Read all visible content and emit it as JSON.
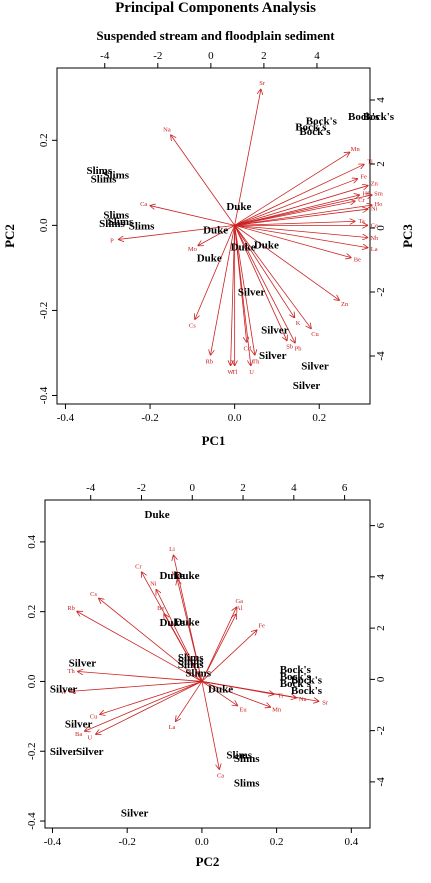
{
  "title": "Principal Components Analysis",
  "subtitle": "Suspended stream and floodplain sediment",
  "colors": {
    "variables": "#cc2222",
    "observations": "#000000"
  },
  "chart_data": [
    {
      "type": "scatter",
      "xlabel": "PC1",
      "ylabel": "PC2",
      "y2label": "PC3",
      "xlim": [
        -0.42,
        0.32
      ],
      "ylim": [
        -0.42,
        0.37
      ],
      "x_ticks": [
        -0.4,
        -0.2,
        0.0,
        0.2
      ],
      "y_ticks": [
        -0.4,
        -0.2,
        0.0,
        0.2
      ],
      "x2lim": [
        -5.8,
        6.0
      ],
      "y2lim": [
        -5.5,
        5.0
      ],
      "x2_ticks": [
        -4,
        -2,
        0,
        2,
        4
      ],
      "y2_ticks": [
        -4,
        -2,
        0,
        2,
        4
      ],
      "observations": [
        {
          "label": "Slims",
          "x": -0.32,
          "y": 0.13
        },
        {
          "label": "Slims",
          "x": -0.28,
          "y": 0.12
        },
        {
          "label": "Slims",
          "x": -0.31,
          "y": 0.11
        },
        {
          "label": "Slims",
          "x": -0.28,
          "y": 0.025
        },
        {
          "label": "Slims",
          "x": -0.27,
          "y": 0.01
        },
        {
          "label": "Slims",
          "x": -0.29,
          "y": 0.005
        },
        {
          "label": "Slims",
          "x": -0.22,
          "y": 0.0
        },
        {
          "label": "Duke",
          "x": 0.01,
          "y": 0.045
        },
        {
          "label": "Duke",
          "x": -0.045,
          "y": -0.01
        },
        {
          "label": "Duke",
          "x": -0.06,
          "y": -0.075
        },
        {
          "label": "Duke",
          "x": 0.02,
          "y": -0.05
        },
        {
          "label": "Duke",
          "x": 0.075,
          "y": -0.045
        },
        {
          "label": "Silver",
          "x": 0.04,
          "y": -0.155
        },
        {
          "label": "Silver",
          "x": 0.095,
          "y": -0.245
        },
        {
          "label": "Silver",
          "x": 0.09,
          "y": -0.305
        },
        {
          "label": "Silver",
          "x": 0.19,
          "y": -0.33
        },
        {
          "label": "Silver",
          "x": 0.17,
          "y": -0.375
        },
        {
          "label": "Bock's",
          "x": 0.205,
          "y": 0.247
        },
        {
          "label": "Bock's",
          "x": 0.18,
          "y": 0.232
        },
        {
          "label": "Bock's",
          "x": 0.19,
          "y": 0.222
        },
        {
          "label": "Bock's",
          "x": 0.305,
          "y": 0.257
        },
        {
          "label": "Bock's",
          "x": 0.34,
          "y": 0.257
        }
      ],
      "variables": [
        {
          "label": "Sr",
          "x": 0.065,
          "y": 0.335
        },
        {
          "label": "Na",
          "x": -0.16,
          "y": 0.225
        },
        {
          "label": "Ti",
          "x": 0.32,
          "y": 0.15
        },
        {
          "label": "Mn",
          "x": 0.285,
          "y": 0.18
        },
        {
          "label": "Fe",
          "x": 0.305,
          "y": 0.115
        },
        {
          "label": "Zn",
          "x": 0.33,
          "y": 0.098
        },
        {
          "label": "Hf",
          "x": 0.31,
          "y": 0.075
        },
        {
          "label": "Cr",
          "x": 0.3,
          "y": 0.06
        },
        {
          "label": "Sm",
          "x": 0.34,
          "y": 0.075
        },
        {
          "label": "Ho",
          "x": 0.34,
          "y": 0.05
        },
        {
          "label": "Ni",
          "x": 0.33,
          "y": 0.04
        },
        {
          "label": "Ta",
          "x": 0.3,
          "y": 0.01
        },
        {
          "label": "Ce",
          "x": 0.33,
          "y": 0.0
        },
        {
          "label": "Nb",
          "x": 0.33,
          "y": -0.03
        },
        {
          "label": "La",
          "x": 0.33,
          "y": -0.055
        },
        {
          "label": "Be",
          "x": 0.29,
          "y": -0.08
        },
        {
          "label": "Zn",
          "x": 0.26,
          "y": -0.185
        },
        {
          "label": "Ca",
          "x": -0.215,
          "y": 0.05
        },
        {
          "label": "P",
          "x": -0.29,
          "y": -0.035
        },
        {
          "label": "Mo",
          "x": -0.1,
          "y": -0.055
        },
        {
          "label": "Cs",
          "x": -0.1,
          "y": -0.235
        },
        {
          "label": "K",
          "x": 0.15,
          "y": -0.23
        },
        {
          "label": "Cu",
          "x": 0.19,
          "y": -0.255
        },
        {
          "label": "Rb",
          "x": -0.06,
          "y": -0.32
        },
        {
          "label": "Cd",
          "x": 0.03,
          "y": -0.29
        },
        {
          "label": "Th",
          "x": 0.05,
          "y": -0.32
        },
        {
          "label": "Sb",
          "x": 0.13,
          "y": -0.285
        },
        {
          "label": "Pb",
          "x": 0.15,
          "y": -0.29
        },
        {
          "label": "W",
          "x": -0.01,
          "y": -0.345
        },
        {
          "label": "Tl",
          "x": 0.0,
          "y": -0.345
        },
        {
          "label": "U",
          "x": 0.04,
          "y": -0.345
        }
      ]
    },
    {
      "type": "scatter",
      "xlabel": "PC2",
      "ylabel": "",
      "y2label": "",
      "xlim": [
        -0.42,
        0.45
      ],
      "ylim": [
        -0.42,
        0.52
      ],
      "x_ticks": [
        -0.4,
        -0.2,
        0.0,
        0.2,
        0.4
      ],
      "y_ticks": [
        -0.4,
        -0.2,
        0.0,
        0.2,
        0.4
      ],
      "x2lim": [
        -5.8,
        7.0
      ],
      "y2lim": [
        -5.8,
        7.0
      ],
      "x2_ticks": [
        -4,
        -2,
        0,
        2,
        4,
        6
      ],
      "y2_ticks": [
        -4,
        -2,
        0,
        2,
        4,
        6
      ],
      "observations": [
        {
          "label": "Duke",
          "x": -0.12,
          "y": 0.48
        },
        {
          "label": "Duke",
          "x": -0.08,
          "y": 0.305
        },
        {
          "label": "Duke",
          "x": -0.04,
          "y": 0.305
        },
        {
          "label": "Duke",
          "x": -0.08,
          "y": 0.17
        },
        {
          "label": "Duke",
          "x": -0.04,
          "y": 0.172
        },
        {
          "label": "Duke",
          "x": 0.05,
          "y": -0.02
        },
        {
          "label": "Slims",
          "x": -0.03,
          "y": 0.07
        },
        {
          "label": "Slims",
          "x": -0.03,
          "y": 0.06
        },
        {
          "label": "Slims",
          "x": -0.03,
          "y": 0.05
        },
        {
          "label": "Slims",
          "x": -0.01,
          "y": 0.025
        },
        {
          "label": "Slims",
          "x": 0.1,
          "y": -0.21
        },
        {
          "label": "Slims",
          "x": 0.12,
          "y": -0.22
        },
        {
          "label": "Slims",
          "x": 0.12,
          "y": -0.29
        },
        {
          "label": "Silver",
          "x": -0.32,
          "y": 0.055
        },
        {
          "label": "Silver",
          "x": -0.37,
          "y": -0.02
        },
        {
          "label": "Silver",
          "x": -0.33,
          "y": -0.12
        },
        {
          "label": "Silver",
          "x": -0.3,
          "y": -0.2
        },
        {
          "label": "Silver",
          "x": -0.37,
          "y": -0.2
        },
        {
          "label": "Silver",
          "x": -0.18,
          "y": -0.375
        },
        {
          "label": "Bock's",
          "x": 0.25,
          "y": 0.035
        },
        {
          "label": "Bock's",
          "x": 0.25,
          "y": 0.015
        },
        {
          "label": "Bock's",
          "x": 0.28,
          "y": 0.005
        },
        {
          "label": "Bock's",
          "x": 0.25,
          "y": -0.005
        },
        {
          "label": "Bock's",
          "x": 0.28,
          "y": -0.025
        }
      ],
      "variables": [
        {
          "label": "Li",
          "x": -0.08,
          "y": 0.38
        },
        {
          "label": "Cr",
          "x": -0.17,
          "y": 0.33
        },
        {
          "label": "Mg",
          "x": -0.07,
          "y": 0.31
        },
        {
          "label": "Ni",
          "x": -0.13,
          "y": 0.28
        },
        {
          "label": "Ga",
          "x": 0.1,
          "y": 0.23
        },
        {
          "label": "Al",
          "x": 0.1,
          "y": 0.21
        },
        {
          "label": "Fe",
          "x": 0.16,
          "y": 0.16
        },
        {
          "label": "Be",
          "x": -0.11,
          "y": 0.21
        },
        {
          "label": "Cs",
          "x": -0.29,
          "y": 0.25
        },
        {
          "label": "Rb",
          "x": -0.35,
          "y": 0.21
        },
        {
          "label": "Th",
          "x": -0.35,
          "y": 0.03
        },
        {
          "label": "W",
          "x": -0.37,
          "y": -0.03
        },
        {
          "label": "Cu",
          "x": -0.29,
          "y": -0.1
        },
        {
          "label": "Ba",
          "x": -0.33,
          "y": -0.15
        },
        {
          "label": "U",
          "x": -0.3,
          "y": -0.16
        },
        {
          "label": "La",
          "x": -0.08,
          "y": -0.13
        },
        {
          "label": "Ti",
          "x": 0.21,
          "y": -0.04
        },
        {
          "label": "Mn",
          "x": 0.2,
          "y": -0.08
        },
        {
          "label": "Sr",
          "x": 0.33,
          "y": -0.06
        },
        {
          "label": "Na",
          "x": 0.27,
          "y": -0.05
        },
        {
          "label": "Eu",
          "x": 0.11,
          "y": -0.08
        },
        {
          "label": "Ca",
          "x": 0.05,
          "y": -0.27
        }
      ]
    }
  ]
}
